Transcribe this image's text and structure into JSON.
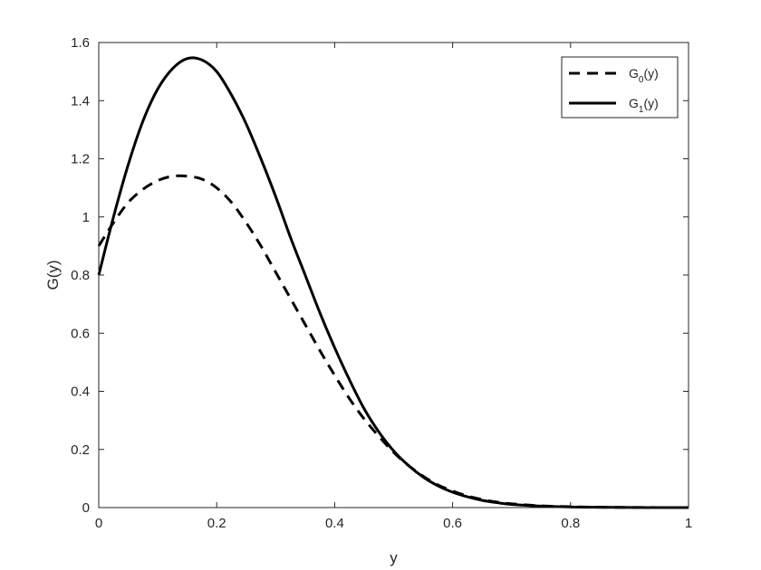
{
  "chart_data": {
    "type": "line",
    "xlabel": "y",
    "ylabel": "G(y)",
    "xlim": [
      0,
      1
    ],
    "ylim": [
      0,
      1.6
    ],
    "xticks": [
      0,
      0.2,
      0.4,
      0.6,
      0.8,
      1
    ],
    "xtick_labels": [
      "0",
      "0.2",
      "0.4",
      "0.6",
      "0.8",
      "1"
    ],
    "yticks": [
      0,
      0.2,
      0.4,
      0.6,
      0.8,
      1,
      1.2,
      1.4,
      1.6
    ],
    "ytick_labels": [
      "0",
      "0.2",
      "0.4",
      "0.6",
      "0.8",
      "1",
      "1.2",
      "1.4",
      "1.6"
    ],
    "grid": false,
    "legend_position": "top-right",
    "series": [
      {
        "name": "G0(y)",
        "legend_base": "G",
        "legend_sub": "0",
        "legend_suffix": "(y)",
        "line_style": "dashed",
        "color": "#000000",
        "x": [
          0,
          0.025,
          0.05,
          0.075,
          0.1,
          0.125,
          0.15,
          0.175,
          0.2,
          0.225,
          0.25,
          0.275,
          0.3,
          0.325,
          0.35,
          0.375,
          0.4,
          0.425,
          0.45,
          0.475,
          0.5,
          0.525,
          0.55,
          0.575,
          0.6,
          0.625,
          0.65,
          0.675,
          0.7,
          0.75,
          0.8,
          0.85,
          0.9,
          0.95,
          1
        ],
        "y": [
          0.9,
          0.98,
          1.05,
          1.095,
          1.125,
          1.14,
          1.14,
          1.13,
          1.1,
          1.05,
          0.98,
          0.9,
          0.81,
          0.72,
          0.63,
          0.54,
          0.455,
          0.375,
          0.305,
          0.245,
          0.19,
          0.145,
          0.108,
          0.078,
          0.057,
          0.04,
          0.028,
          0.019,
          0.013,
          0.006,
          0.003,
          0.001,
          0.0005,
          0.0002,
          0.0001
        ]
      },
      {
        "name": "G1(y)",
        "legend_base": "G",
        "legend_sub": "1",
        "legend_suffix": "(y)",
        "line_style": "solid",
        "color": "#000000",
        "x": [
          0,
          0.025,
          0.05,
          0.075,
          0.1,
          0.125,
          0.15,
          0.175,
          0.2,
          0.225,
          0.25,
          0.275,
          0.3,
          0.325,
          0.35,
          0.375,
          0.4,
          0.425,
          0.45,
          0.475,
          0.5,
          0.525,
          0.55,
          0.575,
          0.6,
          0.625,
          0.65,
          0.675,
          0.7,
          0.75,
          0.8,
          0.85,
          0.9,
          0.95,
          1
        ],
        "y": [
          0.8,
          1.0,
          1.18,
          1.33,
          1.44,
          1.51,
          1.545,
          1.54,
          1.5,
          1.42,
          1.32,
          1.2,
          1.07,
          0.93,
          0.8,
          0.67,
          0.55,
          0.44,
          0.34,
          0.26,
          0.195,
          0.145,
          0.105,
          0.075,
          0.053,
          0.037,
          0.025,
          0.017,
          0.011,
          0.005,
          0.002,
          0.001,
          0.0004,
          0.0001,
          0
        ]
      }
    ]
  }
}
